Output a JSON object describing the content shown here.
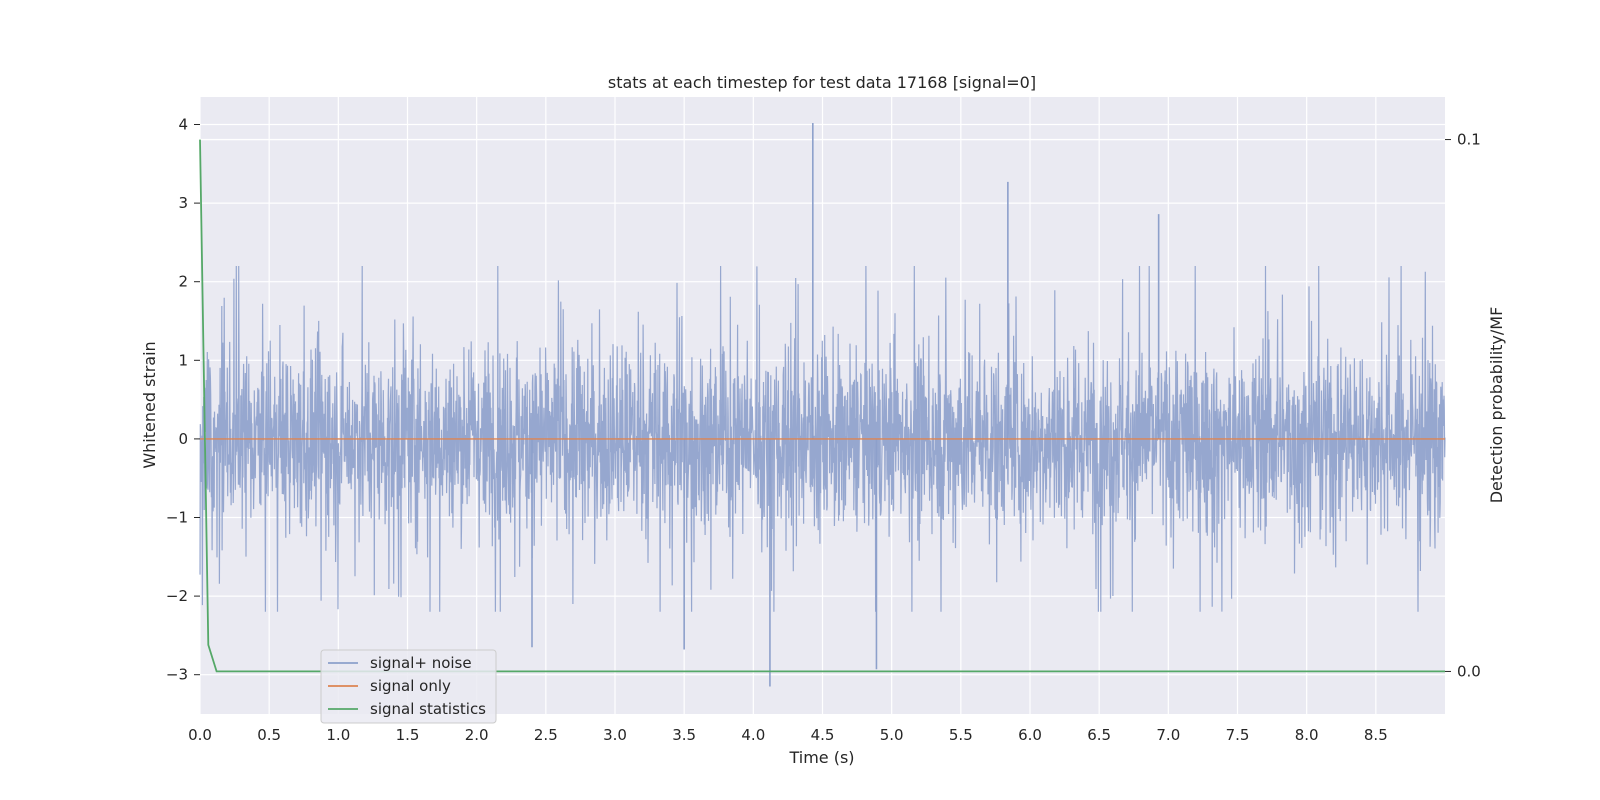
{
  "chart_data": {
    "type": "line",
    "title": "stats at each timestep for test data 17168 [signal=0]",
    "xlabel": "Time (s)",
    "ylabel": "Whitened strain",
    "y2label": "Detection probability/MF",
    "xlim": [
      0.0,
      9.0
    ],
    "ylim": [
      -3.5,
      4.35
    ],
    "y2lim": [
      -0.008,
      0.108
    ],
    "x_ticks": [
      "0.0",
      "0.5",
      "1.0",
      "1.5",
      "2.0",
      "2.5",
      "3.0",
      "3.5",
      "4.0",
      "4.5",
      "5.0",
      "5.5",
      "6.0",
      "6.5",
      "7.0",
      "7.5",
      "8.0",
      "8.5"
    ],
    "y_ticks": [
      "4",
      "3",
      "2",
      "1",
      "0",
      "−1",
      "−2",
      "−3"
    ],
    "y2_ticks": [
      "0.1",
      "0.0"
    ],
    "grid": true,
    "legend_position": "lower-left",
    "series": [
      {
        "name": "signal+ noise",
        "color": "#8da0cb",
        "axis": "left",
        "note_peaks": [
          {
            "x": 4.43,
            "y": 4.02
          },
          {
            "x": 5.84,
            "y": 3.27
          },
          {
            "x": 6.93,
            "y": 2.86
          },
          {
            "x": 4.12,
            "y": -3.15
          },
          {
            "x": 4.89,
            "y": -2.93
          },
          {
            "x": 3.5,
            "y": -2.68
          },
          {
            "x": 2.4,
            "y": -2.65
          }
        ],
        "envelope_upper": 2.2,
        "envelope_lower": -2.2
      },
      {
        "name": "signal only",
        "color": "#dd8452",
        "axis": "left",
        "x": [
          0.0,
          9.0
        ],
        "y": [
          0.0,
          0.0
        ]
      },
      {
        "name": "signal statistics",
        "color": "#55a868",
        "axis": "right",
        "x": [
          0.0,
          0.06,
          0.12,
          0.5,
          1.0,
          2.0,
          3.0,
          4.0,
          5.0,
          6.0,
          7.0,
          8.0,
          8.6,
          8.7,
          9.0
        ],
        "y": [
          0.1,
          0.005,
          0.0,
          0.0,
          0.0,
          0.0,
          0.0,
          0.0,
          0.0,
          0.0,
          0.0,
          0.0,
          0.0,
          0.0,
          0.0
        ],
        "y_left_equivalent": [
          3.95,
          -2.95,
          -3.13,
          -3.13,
          -3.13,
          -3.13,
          -3.13,
          -3.13,
          -3.13,
          -3.13,
          -3.13,
          -3.13,
          -3.13,
          -3.12,
          -3.13
        ]
      }
    ]
  }
}
